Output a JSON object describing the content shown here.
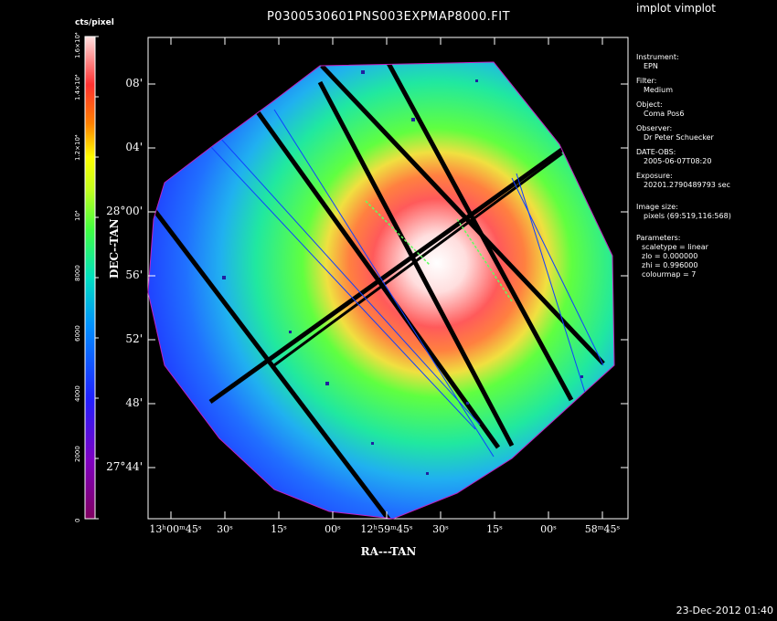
{
  "window": {
    "title": "P0300530601PNS003EXPMAP8000.FIT",
    "program": "implot vimplot",
    "timestamp": "23-Dec-2012 01:40"
  },
  "colorbar": {
    "unit": "cts/pixel",
    "ticks": [
      "0",
      "2000",
      "4000",
      "6000",
      "8000",
      "10⁴",
      "1.2×10⁴",
      "1.4×10⁴",
      "1.6×10⁴"
    ]
  },
  "axes": {
    "ylabel": "DEC--TAN",
    "xlabel": "RA---TAN",
    "yticks": [
      "08'",
      "04'",
      "28°00'",
      "56'",
      "52'",
      "48'",
      "27°44'"
    ],
    "xticks": [
      "13ʰ00ᵐ45ˢ",
      "30ˢ",
      "15ˢ",
      "00ˢ",
      "12ʰ59ᵐ45ˢ",
      "30ˢ",
      "15ˢ",
      "00ˢ",
      "58ᵐ45ˢ"
    ]
  },
  "info": {
    "instrument_label": "Instrument:",
    "instrument": "EPN",
    "filter_label": "Filter:",
    "filter": "Medium",
    "object_label": "Object:",
    "object": "Coma Pos6",
    "observer_label": "Observer:",
    "observer": "Dr Peter Schuecker",
    "date_label": "DATE-OBS:",
    "date": "2005-06-07T08:20",
    "exposure_label": "Exposure:",
    "exposure": "20201.2790489793 sec",
    "imagesize_label": "Image size:",
    "imagesize": "pixels (69:519,116:568)",
    "params_label": "Parameters:",
    "scaletype": "scaletype = linear",
    "zlo": "zlo = 0.000000",
    "zhi": "zhi = 0.996000",
    "colourmap": "colourmap =   7"
  },
  "colors": {
    "background": "#000000",
    "frame": "#ffffff",
    "map_center": "#ffffff",
    "map_ring": "#ff4040",
    "map_mid": "#40ff40",
    "map_edge": "#2060ff"
  }
}
